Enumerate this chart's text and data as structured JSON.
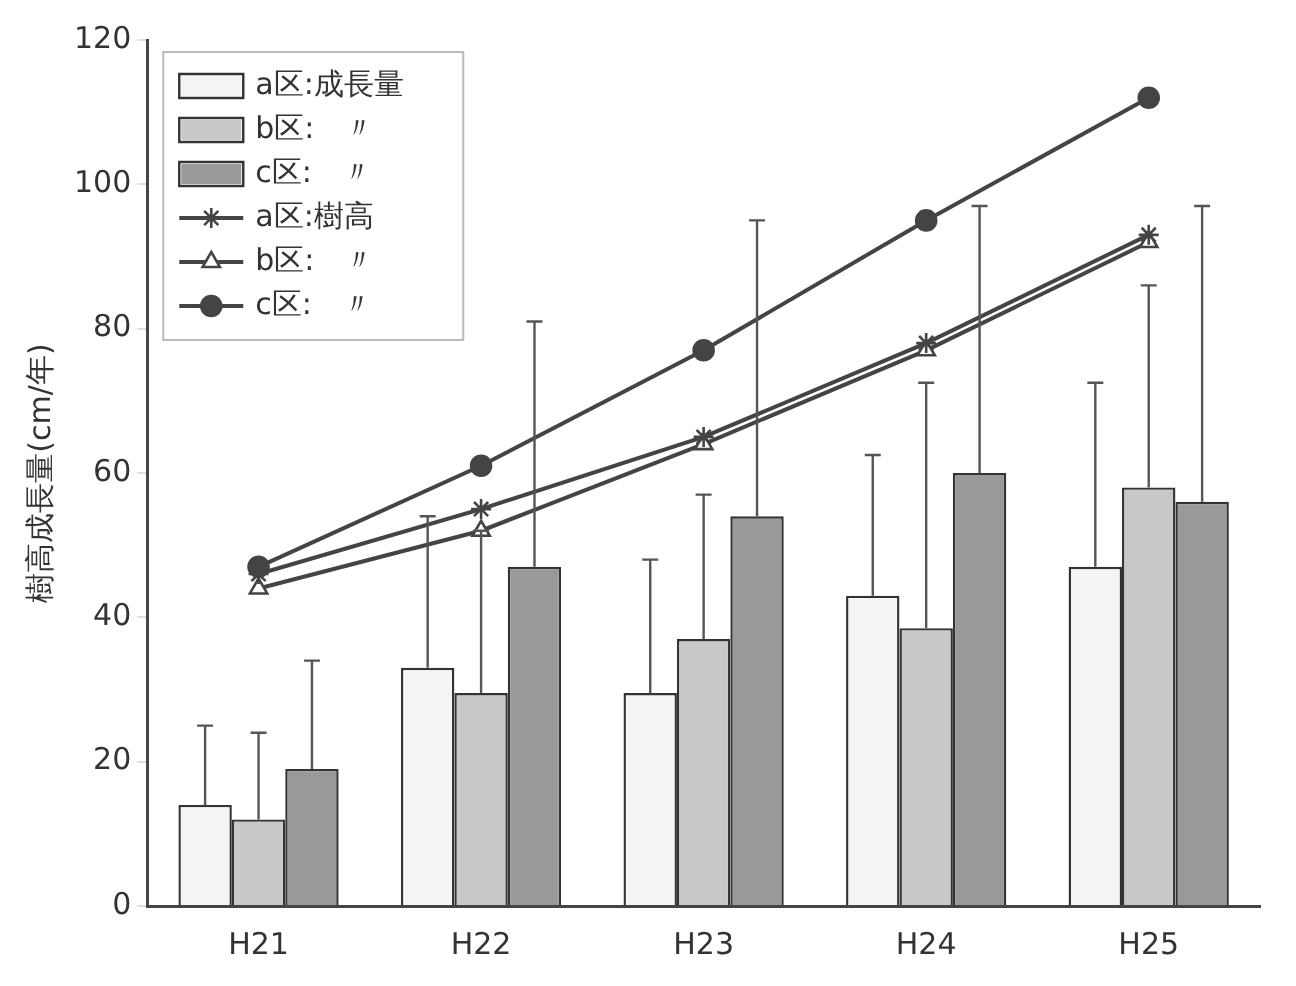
{
  "chart_data": {
    "type": "bar",
    "ylabel": "樹高成長量(cm/年)",
    "categories": [
      "H21",
      "H22",
      "H23",
      "H24",
      "H25"
    ],
    "ylim": [
      0,
      120
    ],
    "yticks": [
      0,
      20,
      40,
      60,
      80,
      100,
      120
    ],
    "legend": "top left",
    "series": [
      {
        "name": "a区:成長量",
        "color": "#f4f4f4",
        "values": [
          14,
          33,
          29.5,
          43,
          47
        ],
        "errors": [
          [
            14,
            25
          ],
          [
            33,
            54
          ],
          [
            29.5,
            48
          ],
          [
            43,
            62.5
          ],
          [
            47,
            72.5
          ]
        ]
      },
      {
        "name": "b区:　〃",
        "color": "#c8c8c8",
        "values": [
          12,
          29.5,
          37,
          38.5,
          58
        ],
        "errors": [
          [
            12,
            24
          ],
          [
            29.5,
            52
          ],
          [
            37,
            57
          ],
          [
            38.5,
            72.5
          ],
          [
            58,
            86
          ]
        ]
      },
      {
        "name": "c区:　〃",
        "color": "#999999",
        "values": [
          19,
          47,
          54,
          60,
          56
        ],
        "errors": [
          [
            19,
            34
          ],
          [
            47,
            81
          ],
          [
            54,
            95
          ],
          [
            60,
            97
          ],
          [
            56,
            97
          ]
        ]
      },
      {
        "name": "a区:樹高",
        "type": "line",
        "color": "#444444",
        "marker": "cross",
        "values": [
          46,
          55,
          65,
          78,
          93
        ]
      },
      {
        "name": "b区:　〃",
        "type": "line",
        "color": "#444444",
        "marker": "triangle",
        "values": [
          44,
          52,
          64,
          77,
          92
        ]
      },
      {
        "name": "c区:　〃",
        "type": "line",
        "color": "#444444",
        "marker": "circle",
        "values": [
          47,
          61,
          77,
          95,
          112
        ]
      }
    ]
  }
}
